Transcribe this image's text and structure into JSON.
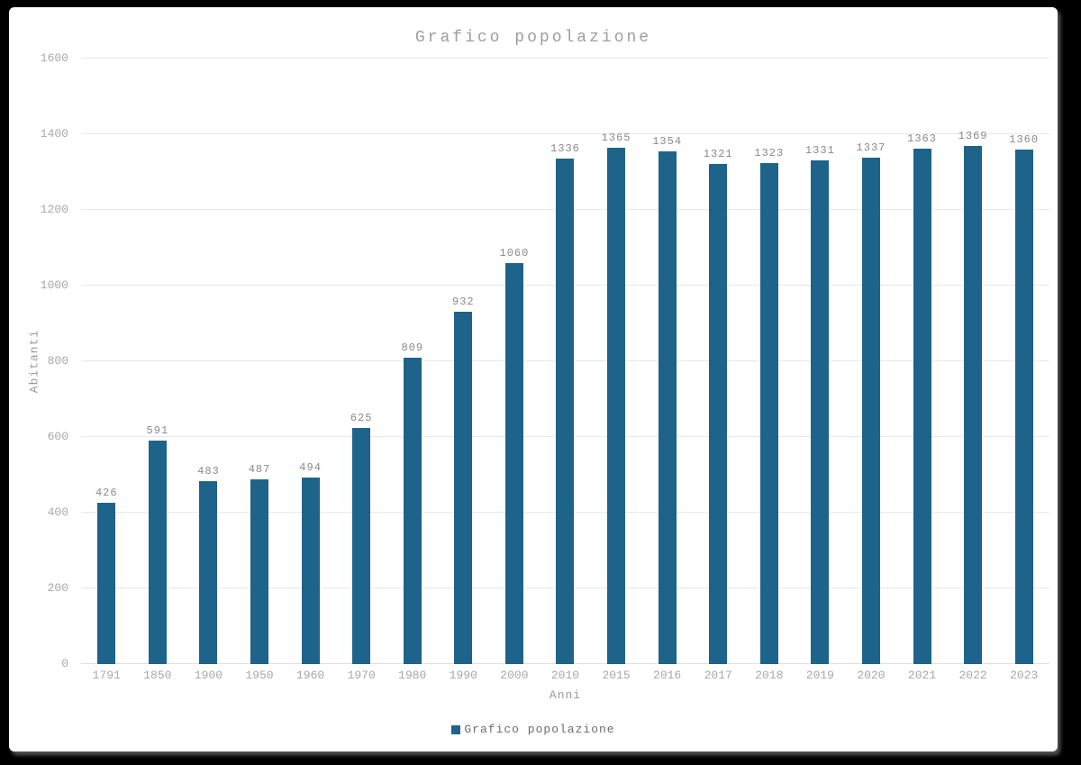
{
  "chart_data": {
    "type": "bar",
    "title": "Grafico popolazione",
    "xlabel": "Anni",
    "ylabel": "Abitanti",
    "categories": [
      "1791",
      "1850",
      "1900",
      "1950",
      "1960",
      "1970",
      "1980",
      "1990",
      "2000",
      "2010",
      "2015",
      "2016",
      "2017",
      "2018",
      "2019",
      "2020",
      "2021",
      "2022",
      "2023"
    ],
    "values": [
      426,
      591,
      483,
      487,
      494,
      625,
      809,
      932,
      1060,
      1336,
      1365,
      1354,
      1321,
      1323,
      1331,
      1337,
      1363,
      1369,
      1360
    ],
    "ylim": [
      0,
      1600
    ],
    "yticks": [
      0,
      200,
      400,
      600,
      800,
      1000,
      1200,
      1400,
      1600
    ],
    "grid": true,
    "data_labels": true,
    "legend": {
      "position": "bottom",
      "label": "Grafico popolazione"
    }
  },
  "colors": {
    "page_background": "#000000",
    "panel_background": "#ffffff",
    "bar": "#1e6389",
    "gridline": "#e9e9e9",
    "tick_text": "#a8a8a8",
    "value_label_text": "#8a8a8a",
    "title_text": "#9e9e9e",
    "axis_title_text": "#9a9a9a",
    "legend_text": "#6e6e6e"
  }
}
